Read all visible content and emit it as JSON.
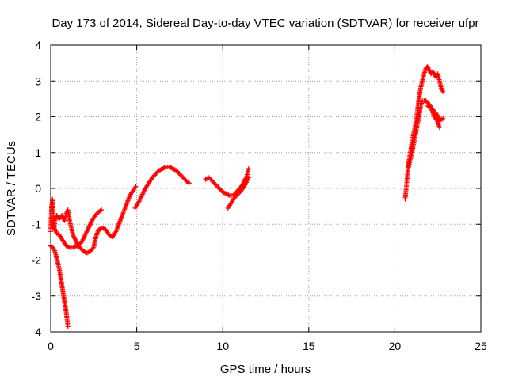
{
  "chart_data": {
    "type": "scatter",
    "title": "Day 173 of 2014, Sidereal Day-to-day VTEC variation (SDTVAR) for receiver ufpr",
    "xlabel": "GPS time / hours",
    "ylabel": "SDTVAR / TECUs",
    "xlim": [
      0,
      25
    ],
    "ylim": [
      -4,
      4
    ],
    "xticks": [
      0,
      5,
      10,
      15,
      20,
      25
    ],
    "yticks": [
      -4,
      -3,
      -2,
      -1,
      0,
      1,
      2,
      3,
      4
    ],
    "grid": true,
    "marker": "+",
    "series": [
      {
        "name": "SDTVAR",
        "color": "#ff0000",
        "segments": [
          [
            [
              0.0,
              -1.2
            ],
            [
              0.05,
              -0.5
            ],
            [
              0.1,
              -0.3
            ],
            [
              0.15,
              -0.7
            ],
            [
              0.2,
              -1.1
            ],
            [
              0.25,
              -0.9
            ],
            [
              0.35,
              -0.75
            ],
            [
              0.5,
              -0.85
            ],
            [
              0.65,
              -0.75
            ],
            [
              0.8,
              -0.9
            ],
            [
              0.9,
              -0.7
            ],
            [
              1.0,
              -0.6
            ],
            [
              1.1,
              -0.9
            ],
            [
              1.3,
              -1.3
            ],
            [
              1.5,
              -1.5
            ],
            [
              1.6,
              -1.6
            ],
            [
              1.8,
              -1.5
            ],
            [
              2.0,
              -1.3
            ],
            [
              2.2,
              -1.1
            ],
            [
              2.4,
              -0.9
            ],
            [
              2.6,
              -0.75
            ],
            [
              2.8,
              -0.65
            ],
            [
              2.95,
              -0.6
            ]
          ],
          [
            [
              0.1,
              -1.0
            ],
            [
              0.2,
              -1.1
            ],
            [
              0.35,
              -1.25
            ],
            [
              0.5,
              -1.3
            ],
            [
              0.7,
              -1.45
            ],
            [
              0.9,
              -1.6
            ],
            [
              1.1,
              -1.65
            ],
            [
              1.3,
              -1.65
            ],
            [
              1.5,
              -1.6
            ],
            [
              1.7,
              -1.65
            ],
            [
              1.9,
              -1.75
            ],
            [
              2.1,
              -1.8
            ],
            [
              2.3,
              -1.75
            ],
            [
              2.5,
              -1.65
            ],
            [
              2.6,
              -1.4
            ],
            [
              2.7,
              -1.25
            ],
            [
              2.8,
              -1.15
            ],
            [
              3.0,
              -1.1
            ],
            [
              3.2,
              -1.15
            ],
            [
              3.4,
              -1.3
            ],
            [
              3.6,
              -1.35
            ],
            [
              3.8,
              -1.2
            ],
            [
              4.0,
              -0.95
            ],
            [
              4.2,
              -0.7
            ],
            [
              4.4,
              -0.45
            ],
            [
              4.6,
              -0.2
            ],
            [
              4.8,
              -0.05
            ],
            [
              4.95,
              0.05
            ]
          ],
          [
            [
              0.0,
              -1.6
            ],
            [
              0.1,
              -1.65
            ],
            [
              0.2,
              -1.7
            ],
            [
              0.3,
              -1.85
            ],
            [
              0.4,
              -2.05
            ],
            [
              0.5,
              -2.25
            ],
            [
              0.6,
              -2.55
            ],
            [
              0.7,
              -2.85
            ],
            [
              0.8,
              -3.15
            ],
            [
              0.9,
              -3.45
            ],
            [
              1.0,
              -3.85
            ]
          ],
          [
            [
              4.9,
              -0.55
            ],
            [
              5.1,
              -0.4
            ],
            [
              5.3,
              -0.2
            ],
            [
              5.5,
              0.0
            ],
            [
              5.7,
              0.15
            ],
            [
              5.9,
              0.3
            ],
            [
              6.1,
              0.4
            ],
            [
              6.3,
              0.5
            ],
            [
              6.5,
              0.55
            ],
            [
              6.7,
              0.6
            ],
            [
              6.9,
              0.6
            ],
            [
              7.1,
              0.55
            ],
            [
              7.3,
              0.5
            ],
            [
              7.5,
              0.4
            ],
            [
              7.7,
              0.3
            ],
            [
              7.9,
              0.2
            ],
            [
              8.05,
              0.15
            ]
          ],
          [
            [
              9.0,
              0.25
            ],
            [
              9.2,
              0.3
            ],
            [
              9.4,
              0.2
            ],
            [
              9.6,
              0.1
            ],
            [
              9.8,
              0.0
            ],
            [
              10.0,
              -0.1
            ],
            [
              10.2,
              -0.15
            ],
            [
              10.4,
              -0.2
            ],
            [
              10.6,
              -0.2
            ],
            [
              10.8,
              -0.1
            ],
            [
              11.0,
              0.0
            ],
            [
              11.2,
              0.15
            ],
            [
              11.4,
              0.35
            ],
            [
              11.5,
              0.55
            ]
          ],
          [
            [
              10.3,
              -0.55
            ],
            [
              10.5,
              -0.4
            ],
            [
              10.7,
              -0.25
            ],
            [
              10.9,
              -0.15
            ],
            [
              11.1,
              -0.05
            ],
            [
              11.3,
              0.1
            ],
            [
              11.5,
              0.3
            ]
          ],
          [
            [
              20.6,
              -0.3
            ],
            [
              20.7,
              0.2
            ],
            [
              20.8,
              0.7
            ],
            [
              20.9,
              1.0
            ],
            [
              21.0,
              1.3
            ],
            [
              21.1,
              1.55
            ],
            [
              21.2,
              1.8
            ],
            [
              21.3,
              2.1
            ],
            [
              21.4,
              2.5
            ],
            [
              21.5,
              2.8
            ],
            [
              21.6,
              3.0
            ],
            [
              21.7,
              3.2
            ],
            [
              21.8,
              3.35
            ],
            [
              21.9,
              3.4
            ],
            [
              22.0,
              3.3
            ],
            [
              22.1,
              3.2
            ],
            [
              22.2,
              3.25
            ],
            [
              22.3,
              3.2
            ],
            [
              22.4,
              3.1
            ],
            [
              22.5,
              3.2
            ],
            [
              22.6,
              3.0
            ],
            [
              22.7,
              2.8
            ],
            [
              22.8,
              2.7
            ]
          ],
          [
            [
              20.8,
              0.6
            ],
            [
              21.0,
              1.0
            ],
            [
              21.2,
              1.5
            ],
            [
              21.4,
              2.0
            ],
            [
              21.5,
              2.3
            ],
            [
              21.6,
              2.45
            ],
            [
              21.8,
              2.45
            ],
            [
              22.0,
              2.35
            ],
            [
              22.2,
              2.2
            ],
            [
              22.4,
              2.1
            ],
            [
              22.6,
              1.9
            ],
            [
              22.8,
              1.95
            ]
          ],
          [
            [
              21.9,
              2.3
            ],
            [
              22.1,
              2.25
            ],
            [
              22.3,
              2.0
            ],
            [
              22.45,
              1.9
            ],
            [
              22.6,
              1.7
            ]
          ]
        ]
      }
    ]
  }
}
